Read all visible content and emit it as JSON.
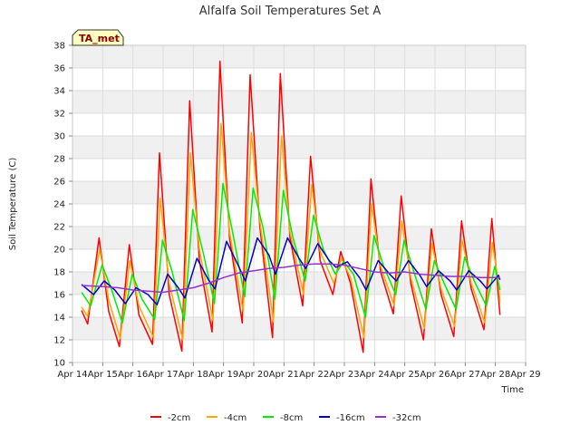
{
  "chart_data": {
    "type": "line",
    "title": "Alfalfa Soil Temperatures Set A",
    "xlabel": "Time",
    "ylabel": "Soil Temperature (C)",
    "badge": "TA_met",
    "xlim": [
      14,
      29
    ],
    "ylim": [
      10,
      38
    ],
    "y_ticks": [
      10,
      12,
      14,
      16,
      18,
      20,
      22,
      24,
      26,
      28,
      30,
      32,
      34,
      36,
      38
    ],
    "x_ticks": [
      {
        "value": 14,
        "label": "Apr 14"
      },
      {
        "value": 15,
        "label": "Apr 15"
      },
      {
        "value": 16,
        "label": "Apr 16"
      },
      {
        "value": 17,
        "label": "Apr 17"
      },
      {
        "value": 18,
        "label": "Apr 18"
      },
      {
        "value": 19,
        "label": "Apr 19"
      },
      {
        "value": 20,
        "label": "Apr 20"
      },
      {
        "value": 21,
        "label": "Apr 21"
      },
      {
        "value": 22,
        "label": "Apr 22"
      },
      {
        "value": 23,
        "label": "Apr 23"
      },
      {
        "value": 24,
        "label": "Apr 24"
      },
      {
        "value": 25,
        "label": "Apr 25"
      },
      {
        "value": 26,
        "label": "Apr 26"
      },
      {
        "value": 27,
        "label": "Apr 27"
      },
      {
        "value": 28,
        "label": "Apr 28"
      },
      {
        "value": 29,
        "label": "Apr 29"
      }
    ],
    "grid": true,
    "legend_position": "bottom",
    "series": [
      {
        "name": "-2cm",
        "color": "#ff0000",
        "points": [
          [
            14.3,
            14.6
          ],
          [
            14.5,
            13.4
          ],
          [
            14.88,
            21.0
          ],
          [
            15.2,
            14.5
          ],
          [
            15.55,
            11.4
          ],
          [
            15.88,
            20.4
          ],
          [
            16.2,
            14.2
          ],
          [
            16.65,
            11.6
          ],
          [
            16.88,
            28.5
          ],
          [
            17.2,
            16.0
          ],
          [
            17.62,
            11.0
          ],
          [
            17.88,
            33.1
          ],
          [
            18.2,
            19.0
          ],
          [
            18.62,
            12.7
          ],
          [
            18.88,
            36.6
          ],
          [
            19.2,
            21.0
          ],
          [
            19.62,
            13.5
          ],
          [
            19.88,
            35.4
          ],
          [
            20.2,
            22.0
          ],
          [
            20.62,
            12.2
          ],
          [
            20.88,
            35.5
          ],
          [
            21.2,
            21.0
          ],
          [
            21.62,
            15.0
          ],
          [
            21.88,
            28.2
          ],
          [
            22.2,
            19.0
          ],
          [
            22.62,
            16.0
          ],
          [
            22.88,
            19.8
          ],
          [
            23.2,
            17.0
          ],
          [
            23.62,
            10.9
          ],
          [
            23.88,
            26.2
          ],
          [
            24.2,
            18.0
          ],
          [
            24.62,
            14.3
          ],
          [
            24.88,
            24.7
          ],
          [
            25.2,
            17.0
          ],
          [
            25.62,
            12.0
          ],
          [
            25.88,
            21.8
          ],
          [
            26.2,
            16.0
          ],
          [
            26.62,
            12.3
          ],
          [
            26.88,
            22.5
          ],
          [
            27.2,
            16.5
          ],
          [
            27.62,
            12.9
          ],
          [
            27.88,
            22.7
          ],
          [
            28.0,
            19.0
          ],
          [
            28.15,
            14.2
          ]
        ]
      },
      {
        "name": "-4cm",
        "color": "#ffa500",
        "points": [
          [
            14.3,
            14.9
          ],
          [
            14.5,
            14.1
          ],
          [
            14.9,
            20.0
          ],
          [
            15.2,
            15.5
          ],
          [
            15.58,
            12.1
          ],
          [
            15.9,
            19.0
          ],
          [
            16.2,
            15.0
          ],
          [
            16.68,
            12.2
          ],
          [
            16.9,
            24.5
          ],
          [
            17.2,
            17.0
          ],
          [
            17.65,
            12.0
          ],
          [
            17.9,
            28.5
          ],
          [
            18.2,
            20.0
          ],
          [
            18.65,
            13.7
          ],
          [
            18.92,
            31.1
          ],
          [
            19.2,
            21.5
          ],
          [
            19.65,
            14.5
          ],
          [
            19.92,
            30.3
          ],
          [
            20.2,
            22.5
          ],
          [
            20.65,
            13.6
          ],
          [
            20.92,
            30.0
          ],
          [
            21.2,
            21.5
          ],
          [
            21.65,
            16.0
          ],
          [
            21.92,
            25.7
          ],
          [
            22.2,
            19.8
          ],
          [
            22.65,
            17.0
          ],
          [
            22.9,
            19.2
          ],
          [
            23.2,
            17.5
          ],
          [
            23.65,
            12.2
          ],
          [
            23.9,
            24.0
          ],
          [
            24.2,
            18.5
          ],
          [
            24.65,
            15.0
          ],
          [
            24.9,
            22.5
          ],
          [
            25.2,
            17.5
          ],
          [
            25.65,
            13.0
          ],
          [
            25.9,
            20.5
          ],
          [
            26.2,
            16.5
          ],
          [
            26.65,
            13.2
          ],
          [
            26.9,
            20.8
          ],
          [
            27.2,
            17.0
          ],
          [
            27.65,
            13.5
          ],
          [
            27.9,
            20.6
          ],
          [
            28.1,
            17.0
          ],
          [
            28.15,
            15.3
          ]
        ]
      },
      {
        "name": "-8cm",
        "color": "#00ee00",
        "points": [
          [
            14.3,
            16.2
          ],
          [
            14.6,
            15.0
          ],
          [
            14.98,
            18.6
          ],
          [
            15.3,
            16.4
          ],
          [
            15.65,
            13.5
          ],
          [
            15.98,
            17.8
          ],
          [
            16.3,
            15.6
          ],
          [
            16.72,
            13.8
          ],
          [
            16.98,
            20.8
          ],
          [
            17.3,
            18.0
          ],
          [
            17.7,
            13.7
          ],
          [
            17.98,
            23.5
          ],
          [
            18.3,
            20.0
          ],
          [
            18.7,
            15.2
          ],
          [
            18.98,
            25.8
          ],
          [
            19.3,
            21.5
          ],
          [
            19.7,
            15.8
          ],
          [
            19.98,
            25.4
          ],
          [
            20.3,
            22.0
          ],
          [
            20.7,
            15.6
          ],
          [
            20.98,
            25.2
          ],
          [
            21.3,
            21.0
          ],
          [
            21.7,
            17.2
          ],
          [
            21.98,
            23.0
          ],
          [
            22.3,
            20.0
          ],
          [
            22.7,
            17.8
          ],
          [
            22.98,
            18.9
          ],
          [
            23.3,
            17.8
          ],
          [
            23.7,
            14.0
          ],
          [
            23.98,
            21.2
          ],
          [
            24.3,
            18.5
          ],
          [
            24.7,
            16.0
          ],
          [
            24.98,
            20.8
          ],
          [
            25.3,
            18.0
          ],
          [
            25.7,
            14.7
          ],
          [
            25.98,
            19.0
          ],
          [
            26.3,
            17.0
          ],
          [
            26.7,
            14.7
          ],
          [
            26.98,
            19.3
          ],
          [
            27.3,
            17.2
          ],
          [
            27.7,
            15.0
          ],
          [
            27.98,
            18.5
          ],
          [
            28.15,
            16.4
          ]
        ]
      },
      {
        "name": "-16cm",
        "color": "#0000cc",
        "points": [
          [
            14.3,
            16.9
          ],
          [
            14.7,
            16.0
          ],
          [
            15.05,
            17.2
          ],
          [
            15.4,
            16.4
          ],
          [
            15.75,
            15.2
          ],
          [
            16.1,
            16.6
          ],
          [
            16.5,
            16.0
          ],
          [
            16.8,
            15.1
          ],
          [
            17.15,
            17.8
          ],
          [
            17.5,
            16.6
          ],
          [
            17.72,
            15.7
          ],
          [
            18.12,
            19.2
          ],
          [
            18.5,
            17.3
          ],
          [
            18.72,
            16.5
          ],
          [
            19.1,
            20.7
          ],
          [
            19.5,
            18.5
          ],
          [
            19.72,
            17.2
          ],
          [
            20.12,
            21.0
          ],
          [
            20.5,
            19.5
          ],
          [
            20.72,
            17.8
          ],
          [
            21.12,
            21.0
          ],
          [
            21.5,
            19.2
          ],
          [
            21.72,
            18.3
          ],
          [
            22.12,
            20.5
          ],
          [
            22.5,
            19.0
          ],
          [
            22.72,
            18.4
          ],
          [
            23.1,
            18.9
          ],
          [
            23.5,
            17.5
          ],
          [
            23.72,
            16.4
          ],
          [
            24.12,
            19.0
          ],
          [
            24.5,
            17.8
          ],
          [
            24.72,
            17.2
          ],
          [
            25.12,
            19.0
          ],
          [
            25.5,
            17.7
          ],
          [
            25.72,
            16.7
          ],
          [
            26.12,
            18.1
          ],
          [
            26.5,
            17.2
          ],
          [
            26.72,
            16.4
          ],
          [
            27.12,
            18.1
          ],
          [
            27.5,
            17.2
          ],
          [
            27.72,
            16.5
          ],
          [
            28.1,
            17.7
          ],
          [
            28.15,
            17.3
          ]
        ]
      },
      {
        "name": "-32cm",
        "color": "#9932cc",
        "points": [
          [
            14.3,
            16.8
          ],
          [
            15.0,
            16.7
          ],
          [
            15.5,
            16.6
          ],
          [
            16.0,
            16.4
          ],
          [
            16.5,
            16.3
          ],
          [
            17.0,
            16.2
          ],
          [
            17.5,
            16.4
          ],
          [
            18.0,
            16.6
          ],
          [
            18.5,
            17.0
          ],
          [
            19.0,
            17.5
          ],
          [
            19.5,
            17.9
          ],
          [
            20.0,
            18.1
          ],
          [
            20.5,
            18.3
          ],
          [
            21.0,
            18.4
          ],
          [
            21.5,
            18.6
          ],
          [
            22.0,
            18.7
          ],
          [
            22.5,
            18.7
          ],
          [
            23.0,
            18.6
          ],
          [
            23.5,
            18.3
          ],
          [
            24.0,
            18.0
          ],
          [
            24.5,
            17.9
          ],
          [
            25.0,
            18.0
          ],
          [
            25.5,
            17.8
          ],
          [
            26.0,
            17.7
          ],
          [
            26.5,
            17.6
          ],
          [
            27.0,
            17.6
          ],
          [
            27.5,
            17.5
          ],
          [
            28.0,
            17.5
          ],
          [
            28.15,
            17.5
          ]
        ]
      }
    ]
  }
}
